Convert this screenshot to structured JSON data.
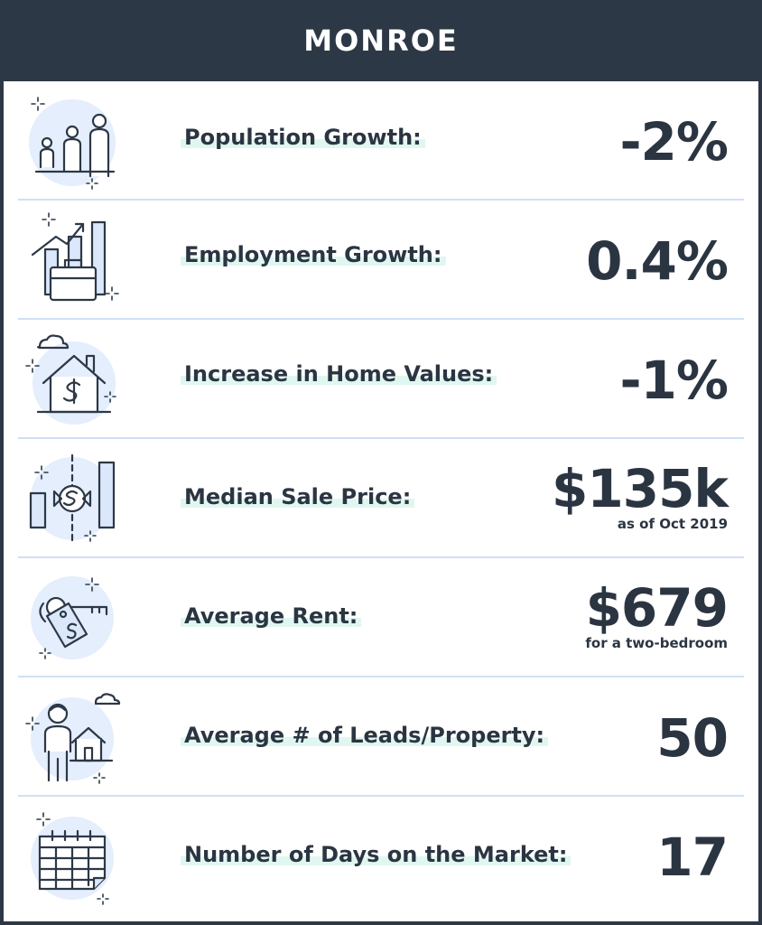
{
  "header": {
    "title": "MONROE"
  },
  "colors": {
    "dark": "#2d3846",
    "accent_light": "#e4eefc",
    "highlight": "#dff7f0",
    "divider": "#cfe0f5"
  },
  "rows": [
    {
      "icon": "family-icon",
      "label": "Population Growth:",
      "value": "-2%"
    },
    {
      "icon": "employment-chart-icon",
      "label": "Employment Growth:",
      "value": "0.4%"
    },
    {
      "icon": "house-dollar-icon",
      "label": "Increase in Home Values:",
      "value": "-1%"
    },
    {
      "icon": "median-price-icon",
      "label": "Median Sale Price:",
      "value": "$135k",
      "note": "as of Oct 2019"
    },
    {
      "icon": "key-tag-icon",
      "label": "Average Rent:",
      "value": "$679",
      "note": "for a two-bedroom"
    },
    {
      "icon": "person-house-icon",
      "label": "Average # of Leads/Property:",
      "value": "50"
    },
    {
      "icon": "calendar-icon",
      "label": "Number of Days on the Market:",
      "value": "17"
    }
  ]
}
